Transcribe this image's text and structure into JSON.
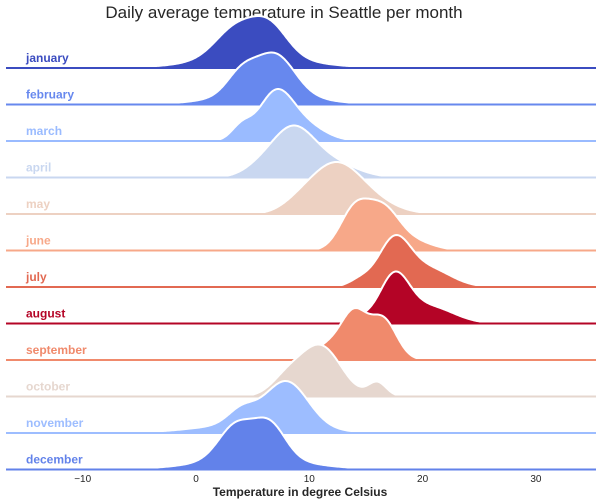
{
  "chart_data": {
    "type": "ridgeline",
    "title": "Daily average temperature in Seattle per month",
    "xlabel": "Temperature in degree Celsius",
    "xlim": [
      -15,
      35
    ],
    "xticks": [
      -10,
      0,
      10,
      20,
      30
    ],
    "series": [
      {
        "name": "january",
        "color": "#3b4cc0",
        "peaks": [
          [
            3.5,
            0.85,
            1.8
          ],
          [
            6.5,
            0.9,
            1.6
          ],
          [
            5,
            0.35,
            4.5
          ]
        ]
      },
      {
        "name": "february",
        "color": "#6788ee",
        "peaks": [
          [
            4,
            0.55,
            1.3
          ],
          [
            7,
            1.0,
            1.7
          ],
          [
            6,
            0.3,
            4
          ]
        ]
      },
      {
        "name": "march",
        "color": "#9abbff",
        "peaks": [
          [
            4,
            0.3,
            0.9
          ],
          [
            7,
            1.0,
            1.5
          ],
          [
            9.5,
            0.35,
            1.8
          ]
        ]
      },
      {
        "name": "april",
        "color": "#c9d7f0",
        "peaks": [
          [
            8.5,
            1.0,
            1.9
          ],
          [
            12,
            0.3,
            2.2
          ],
          [
            5.5,
            0.15,
            1.5
          ]
        ]
      },
      {
        "name": "may",
        "color": "#edd1c2",
        "peaks": [
          [
            12,
            0.95,
            2.2
          ],
          [
            14.5,
            0.4,
            2.5
          ],
          [
            9,
            0.15,
            1.5
          ]
        ]
      },
      {
        "name": "june",
        "color": "#f7a889",
        "peaks": [
          [
            14,
            0.85,
            1.3
          ],
          [
            16.5,
            0.8,
            1.4
          ],
          [
            19,
            0.2,
            1.8
          ]
        ]
      },
      {
        "name": "july",
        "color": "#e26952",
        "peaks": [
          [
            17.5,
            1.0,
            1.4
          ],
          [
            20.5,
            0.4,
            2.0
          ],
          [
            14.5,
            0.15,
            1.0
          ]
        ]
      },
      {
        "name": "august",
        "color": "#b40426",
        "peaks": [
          [
            17.5,
            1.05,
            1.3
          ],
          [
            20.5,
            0.4,
            2.2
          ],
          [
            14.5,
            0.12,
            1.0
          ]
        ]
      },
      {
        "name": "september",
        "color": "#f08a6c",
        "peaks": [
          [
            14,
            0.75,
            1.1
          ],
          [
            16.5,
            0.75,
            1.2
          ],
          [
            12,
            0.3,
            1.5
          ]
        ]
      },
      {
        "name": "october",
        "color": "#e6d7cf",
        "peaks": [
          [
            11,
            0.9,
            1.8
          ],
          [
            8,
            0.3,
            1.4
          ],
          [
            16,
            0.25,
            0.8
          ]
        ]
      },
      {
        "name": "november",
        "color": "#9dbdff",
        "peaks": [
          [
            8,
            0.95,
            1.9
          ],
          [
            4,
            0.3,
            1.2
          ],
          [
            5,
            0.2,
            4.5
          ]
        ]
      },
      {
        "name": "december",
        "color": "#6282ea",
        "peaks": [
          [
            3.5,
            0.85,
            1.5
          ],
          [
            6.5,
            0.88,
            1.4
          ],
          [
            5,
            0.3,
            4.5
          ]
        ]
      }
    ]
  }
}
